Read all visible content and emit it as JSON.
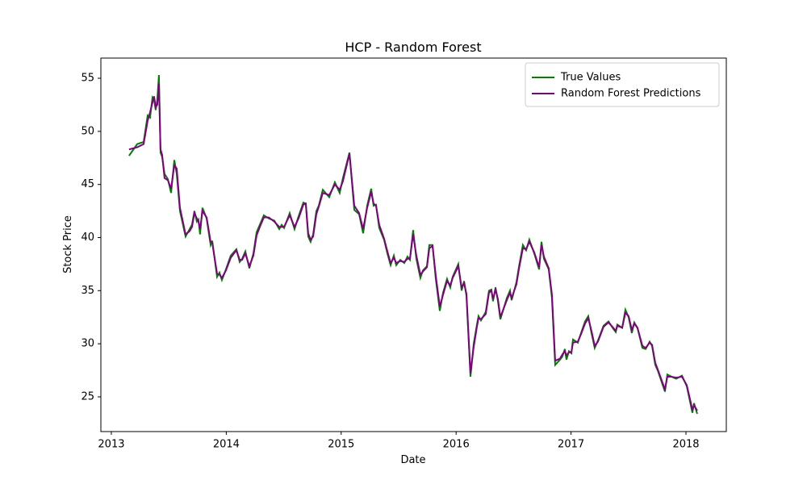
{
  "chart_data": {
    "type": "line",
    "title": "HCP - Random Forest",
    "x_label": "Date",
    "y_label": "Stock Price",
    "x": [
      2013.154,
      2013.225,
      2013.281,
      2013.316,
      2013.337,
      2013.358,
      2013.372,
      2013.386,
      2013.4,
      2013.414,
      2013.428,
      2013.442,
      2013.463,
      2013.492,
      2013.52,
      2013.548,
      2013.569,
      2013.597,
      2013.646,
      2013.681,
      2013.702,
      2013.723,
      2013.744,
      2013.758,
      2013.772,
      2013.793,
      2013.829,
      2013.864,
      2013.878,
      2013.92,
      2013.941,
      2013.962,
      2013.997,
      2014.039,
      2014.088,
      2014.117,
      2014.138,
      2014.166,
      2014.201,
      2014.236,
      2014.264,
      2014.292,
      2014.327,
      2014.369,
      2014.418,
      2014.461,
      2014.482,
      2014.503,
      2014.552,
      2014.594,
      2014.629,
      2014.671,
      2014.692,
      2014.713,
      2014.734,
      2014.756,
      2014.784,
      2014.805,
      2014.84,
      2014.896,
      2014.945,
      2014.987,
      2015.015,
      2015.072,
      2015.114,
      2015.156,
      2015.191,
      2015.226,
      2015.261,
      2015.282,
      2015.303,
      2015.331,
      2015.373,
      2015.402,
      2015.43,
      2015.458,
      2015.479,
      2015.514,
      2015.549,
      2015.577,
      2015.598,
      2015.626,
      2015.654,
      2015.689,
      2015.711,
      2015.746,
      2015.767,
      2015.795,
      2015.823,
      2015.858,
      2015.886,
      2015.921,
      2015.949,
      2015.97,
      2016.019,
      2016.048,
      2016.069,
      2016.09,
      2016.125,
      2016.153,
      2016.181,
      2016.195,
      2016.216,
      2016.258,
      2016.286,
      2016.307,
      2016.321,
      2016.343,
      2016.364,
      2016.385,
      2016.441,
      2016.469,
      2016.483,
      2016.525,
      2016.546,
      2016.581,
      2016.609,
      2016.637,
      2016.68,
      2016.722,
      2016.743,
      2016.764,
      2016.806,
      2016.834,
      2016.862,
      2016.904,
      2016.925,
      2016.946,
      2016.96,
      2016.982,
      2017.003,
      2017.017,
      2017.059,
      2017.087,
      2017.122,
      2017.15,
      2017.178,
      2017.206,
      2017.234,
      2017.283,
      2017.326,
      2017.368,
      2017.389,
      2017.403,
      2017.445,
      2017.473,
      2017.501,
      2017.529,
      2017.55,
      2017.578,
      2017.621,
      2017.649,
      2017.684,
      2017.705,
      2017.733,
      2017.754,
      2017.817,
      2017.838,
      2017.873,
      2017.915,
      2017.965,
      2018.007,
      2018.056,
      2018.07,
      2018.098
    ],
    "series": [
      {
        "name": "True Values",
        "color": "#008000",
        "values": [
          47.7,
          48.8,
          49.0,
          51.5,
          51.3,
          53.2,
          53.0,
          52.0,
          53.0,
          55.3,
          48.0,
          47.6,
          46.0,
          45.5,
          44.2,
          47.3,
          46.0,
          42.5,
          40.1,
          40.8,
          41.2,
          42.5,
          41.5,
          41.7,
          40.3,
          42.8,
          41.8,
          39.3,
          39.7,
          36.3,
          36.7,
          36.0,
          37.0,
          38.3,
          38.9,
          37.7,
          38.0,
          38.7,
          37.1,
          38.5,
          40.5,
          41.2,
          42.1,
          41.8,
          41.6,
          40.8,
          41.2,
          40.9,
          42.3,
          40.8,
          42.0,
          43.3,
          43.2,
          40.1,
          39.6,
          40.3,
          42.5,
          43.0,
          44.5,
          43.8,
          45.2,
          44.2,
          45.6,
          48.0,
          42.6,
          42.2,
          40.4,
          43.0,
          44.6,
          43.0,
          43.1,
          40.9,
          39.8,
          38.5,
          37.4,
          38.3,
          37.4,
          37.9,
          37.6,
          38.2,
          37.9,
          40.7,
          38.0,
          36.2,
          36.9,
          37.3,
          39.3,
          39.3,
          36.1,
          33.1,
          34.8,
          36.1,
          35.3,
          36.3,
          37.5,
          35.0,
          35.9,
          34.5,
          26.9,
          30.0,
          31.8,
          32.6,
          32.2,
          33.0,
          35.0,
          35.1,
          34.0,
          35.3,
          34.0,
          32.3,
          34.3,
          35.0,
          34.1,
          35.8,
          37.2,
          39.3,
          38.8,
          39.8,
          38.5,
          37.0,
          39.6,
          38.0,
          37.0,
          34.3,
          28.0,
          28.5,
          28.8,
          29.5,
          28.5,
          29.3,
          29.1,
          30.4,
          30.1,
          31.0,
          32.1,
          32.6,
          31.0,
          29.6,
          30.3,
          31.7,
          32.1,
          31.4,
          31.1,
          31.8,
          31.5,
          33.2,
          32.5,
          31.0,
          32.0,
          31.5,
          29.6,
          29.5,
          30.2,
          29.8,
          28.0,
          27.5,
          25.5,
          27.1,
          26.9,
          26.7,
          27.0,
          26.0,
          23.5,
          24.4,
          23.4
        ]
      },
      {
        "name": "Random Forest Predictions",
        "color": "#800080",
        "values": [
          48.3,
          48.5,
          48.8,
          51.0,
          51.8,
          52.7,
          53.3,
          52.3,
          52.5,
          54.5,
          48.3,
          47.8,
          45.6,
          45.4,
          44.6,
          46.8,
          46.5,
          42.8,
          40.3,
          40.6,
          41.0,
          42.3,
          41.8,
          41.5,
          40.8,
          42.5,
          41.9,
          39.6,
          39.5,
          36.6,
          36.5,
          36.2,
          36.9,
          38.1,
          38.8,
          37.9,
          37.9,
          38.5,
          37.3,
          38.3,
          40.2,
          41.0,
          41.9,
          41.9,
          41.5,
          41.0,
          41.0,
          41.0,
          42.1,
          41.0,
          41.8,
          43.1,
          43.2,
          40.4,
          39.8,
          40.1,
          42.2,
          42.9,
          44.2,
          44.0,
          45.0,
          44.5,
          45.3,
          47.9,
          43.0,
          42.3,
          40.8,
          42.8,
          44.3,
          43.2,
          43.0,
          41.2,
          39.9,
          38.7,
          37.6,
          38.1,
          37.6,
          37.8,
          37.7,
          38.0,
          38.0,
          40.3,
          38.3,
          36.5,
          36.8,
          37.2,
          39.0,
          39.2,
          36.4,
          33.5,
          34.6,
          35.9,
          35.5,
          36.2,
          37.3,
          35.3,
          35.7,
          34.7,
          27.2,
          29.7,
          31.6,
          32.4,
          32.3,
          32.8,
          34.8,
          35.0,
          34.2,
          35.1,
          34.2,
          32.5,
          34.1,
          34.8,
          34.3,
          35.6,
          37.0,
          39.0,
          38.9,
          39.6,
          38.6,
          37.2,
          39.3,
          38.2,
          37.1,
          34.6,
          28.4,
          28.6,
          29.0,
          29.3,
          28.9,
          29.2,
          29.2,
          30.1,
          30.2,
          30.9,
          31.9,
          32.4,
          31.2,
          29.8,
          30.2,
          31.6,
          32.0,
          31.5,
          31.2,
          31.7,
          31.5,
          32.9,
          32.6,
          31.3,
          31.9,
          31.5,
          29.8,
          29.6,
          30.1,
          29.9,
          28.2,
          27.6,
          25.7,
          26.9,
          26.9,
          26.8,
          26.9,
          26.1,
          23.8,
          24.2,
          23.7
        ]
      }
    ],
    "xlim": [
      2012.909,
      2018.351
    ],
    "xticks": [
      2013,
      2014,
      2015,
      2016,
      2017,
      2018
    ],
    "ylim": [
      21.73,
      56.9
    ],
    "yticks": [
      25,
      30,
      35,
      40,
      45,
      50,
      55
    ],
    "legend": "upper right"
  }
}
